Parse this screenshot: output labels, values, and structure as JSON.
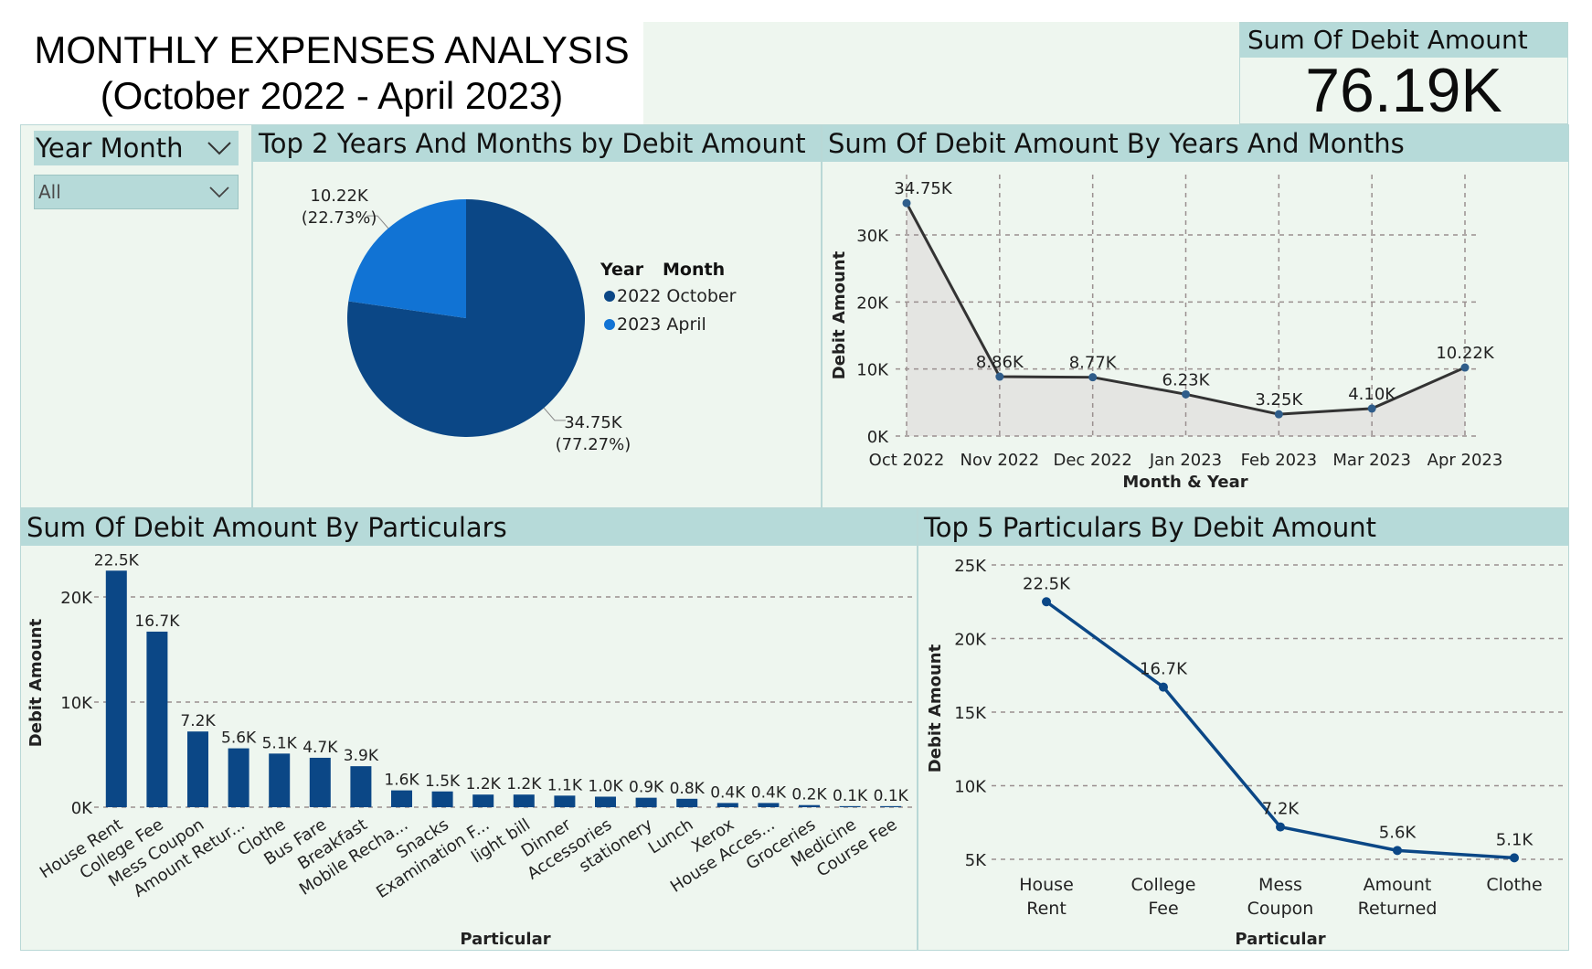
{
  "title": {
    "line1": "MONTHLY EXPENSES ANALYSIS",
    "line2": "(October 2022 - April 2023)"
  },
  "kpi": {
    "label": "Sum Of Debit Amount",
    "value": "76.19K"
  },
  "slicer": {
    "label": "Year Month",
    "selected": "All",
    "icon": "chevron-down-icon"
  },
  "colors": {
    "navy": "#0b4786",
    "blue": "#1173d4",
    "panel": "#eef6ef",
    "header": "#b6dad9",
    "line": "#333333",
    "area": "#e4e5e2"
  },
  "pie_panel": {
    "title": "Top 2 Years And Months by Debit Amount",
    "legend_headers": [
      "Year",
      "Month"
    ],
    "slice_labels": [
      {
        "value": "34.75K",
        "pct": "(77.27%)"
      },
      {
        "value": "10.22K",
        "pct": "(22.73%)"
      }
    ]
  },
  "line_panel": {
    "title": "Sum Of Debit Amount By Years And Months"
  },
  "bar_panel": {
    "title": "Sum Of Debit Amount By Particulars"
  },
  "top5_panel": {
    "title": "Top 5 Particulars By Debit Amount"
  },
  "chart_data": [
    {
      "type": "pie",
      "title": "Top 2 Years And Months by Debit Amount",
      "legend_title": "Year Month",
      "series": [
        {
          "name": "2022 October",
          "value": 34.75,
          "label": "34.75K",
          "percent": 77.27,
          "color": "#0b4786"
        },
        {
          "name": "2023 April",
          "value": 10.22,
          "label": "10.22K",
          "percent": 22.73,
          "color": "#1173d4"
        }
      ]
    },
    {
      "type": "area",
      "title": "Sum Of Debit Amount By Years And Months",
      "xlabel": "Month & Year",
      "ylabel": "Debit Amount",
      "categories": [
        "Oct 2022",
        "Nov 2022",
        "Dec 2022",
        "Jan 2023",
        "Feb 2023",
        "Mar 2023",
        "Apr 2023"
      ],
      "values": [
        34750,
        8860,
        8770,
        6230,
        3250,
        4100,
        10220
      ],
      "data_labels": [
        "34.75K",
        "8.86K",
        "8.77K",
        "6.23K",
        "3.25K",
        "4.10K",
        "10.22K"
      ],
      "ylim": [
        0,
        36000
      ],
      "yticks": [
        0,
        10000,
        20000,
        30000
      ],
      "ytick_labels": [
        "0K",
        "10K",
        "20K",
        "30K"
      ],
      "grid": true
    },
    {
      "type": "bar",
      "title": "Sum Of Debit Amount By Particulars",
      "xlabel": "Particular",
      "ylabel": "Debit Amount",
      "categories": [
        "House Rent",
        "College Fee",
        "Mess Coupon",
        "Amount Retur...",
        "Clothe",
        "Bus Fare",
        "Breakfast",
        "Mobile Recha...",
        "Snacks",
        "Examination F...",
        "light bill",
        "Dinner",
        "Accessories",
        "stationery",
        "Lunch",
        "Xerox",
        "House Acces...",
        "Groceries",
        "Medicine",
        "Course Fee"
      ],
      "values": [
        22500,
        16700,
        7200,
        5600,
        5100,
        4700,
        3900,
        1600,
        1500,
        1200,
        1200,
        1100,
        1000,
        900,
        800,
        400,
        400,
        200,
        100,
        100
      ],
      "data_labels": [
        "22.5K",
        "16.7K",
        "7.2K",
        "5.6K",
        "5.1K",
        "4.7K",
        "3.9K",
        "1.6K",
        "1.5K",
        "1.2K",
        "1.2K",
        "1.1K",
        "1.0K",
        "0.9K",
        "0.8K",
        "0.4K",
        "0.4K",
        "0.2K",
        "0.1K",
        "0.1K"
      ],
      "ylim": [
        0,
        24000
      ],
      "yticks": [
        0,
        10000,
        20000
      ],
      "ytick_labels": [
        "0K",
        "10K",
        "20K"
      ],
      "grid": true
    },
    {
      "type": "line",
      "title": "Top 5 Particulars By Debit Amount",
      "xlabel": "Particular",
      "ylabel": "Debit Amount",
      "categories": [
        [
          "House",
          "Rent"
        ],
        [
          "College",
          "Fee"
        ],
        [
          "Mess",
          "Coupon"
        ],
        [
          "Amount",
          "Returned"
        ],
        [
          "Clothe"
        ]
      ],
      "values": [
        22500,
        16700,
        7200,
        5600,
        5100
      ],
      "data_labels": [
        "22.5K",
        "16.7K",
        "7.2K",
        "5.6K",
        "5.1K"
      ],
      "ylim": [
        5000,
        25000
      ],
      "yticks": [
        5000,
        10000,
        15000,
        20000,
        25000
      ],
      "ytick_labels": [
        "5K",
        "10K",
        "15K",
        "20K",
        "25K"
      ],
      "grid": true
    }
  ]
}
